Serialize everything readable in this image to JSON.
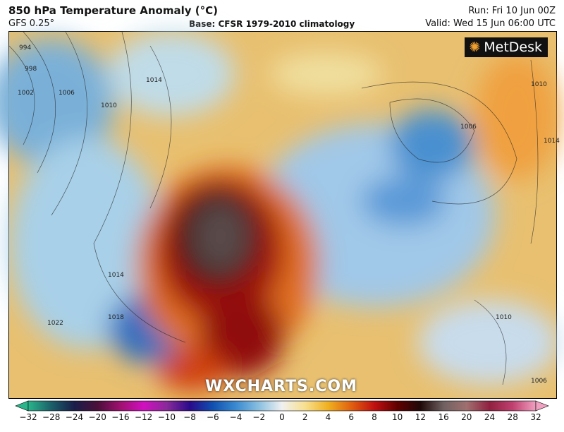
{
  "header": {
    "title": "850 hPa Temperature Anomaly (°C)",
    "model": "GFS 0.25°",
    "base": "Base: CFSR 1979-2010 climatology",
    "run": "Run: Fri 10 Jun 00Z",
    "valid": "Valid: Wed 15 Jun 06:00 UTC"
  },
  "logo": {
    "text": "MetDesk"
  },
  "watermark": "WXCHARTS.COM",
  "isobars": [
    "994",
    "998",
    "1002",
    "1006",
    "1010",
    "1014",
    "1014",
    "1018",
    "1022",
    "1006",
    "1010",
    "1014",
    "1010",
    "1006"
  ],
  "colorbar": {
    "ticks": [
      "−32",
      "−28",
      "−24",
      "−20",
      "−16",
      "−12",
      "−10",
      "−8",
      "−6",
      "−4",
      "−2",
      "0",
      "2",
      "4",
      "6",
      "8",
      "10",
      "12",
      "16",
      "20",
      "24",
      "28",
      "32"
    ],
    "colors": [
      "#2ab58a",
      "#1b5f6a",
      "#1a1d4a",
      "#4a0f3a",
      "#a01070",
      "#d010c0",
      "#8a2a9a",
      "#2a0a8a",
      "#1050b0",
      "#3a8ad0",
      "#8ac0e0",
      "#f0f0f0",
      "#f8e090",
      "#f0b020",
      "#e06010",
      "#c01010",
      "#600000",
      "#200808",
      "#706060",
      "#a07070",
      "#902040",
      "#c04070",
      "#f0a0c0"
    ]
  }
}
